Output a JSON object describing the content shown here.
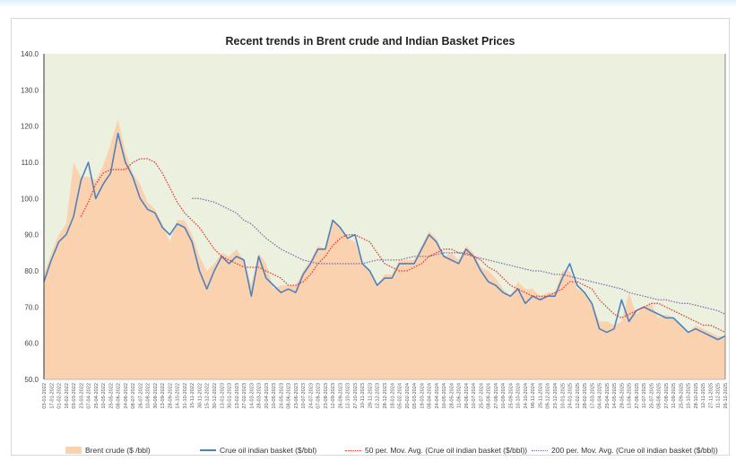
{
  "chart_data": {
    "type": "line",
    "title": "Recent trends in Brent crude and Indian Basket Prices",
    "xlabel": "",
    "ylabel": "",
    "ylim": [
      50,
      140
    ],
    "yticks": [
      "50.0",
      "60.0",
      "70.0",
      "80.0",
      "90.0",
      "100.0",
      "110.0",
      "120.0",
      "130.0",
      "140.0"
    ],
    "grid": false,
    "legend_position": "bottom",
    "plot_background": "#ebf1de",
    "x": [
      "03-01-2022",
      "17-01-2022",
      "01-02-2022",
      "16-02-2022",
      "03-03-2022",
      "23-03-2022",
      "07-04-2022",
      "25-04-2022",
      "10-05-2022",
      "25-05-2022",
      "08-06-2022",
      "24-06-2022",
      "08-07-2022",
      "26-07-2022",
      "10-08-2022",
      "30-08-2022",
      "13-09-2022",
      "28-09-2022",
      "14-10-2022",
      "31-10-2022",
      "15-11-2022",
      "30-11-2022",
      "15-12-2022",
      "30-12-2022",
      "13-01-2023",
      "30-01-2023",
      "13-02-2023",
      "27-02-2023",
      "14-03-2023",
      "28-03-2023",
      "20-04-2023",
      "10-05-2023",
      "24-05-2023",
      "08-06-2023",
      "23-06-2023",
      "10-07-2023",
      "24-07-2023",
      "07-08-2023",
      "23-08-2023",
      "12-09-2023",
      "26-09-2023",
      "12-10-2023",
      "27-10-2023",
      "10-11-2023",
      "28-11-2023",
      "12-12-2023",
      "28-12-2023",
      "18-01-2024",
      "05-02-2024",
      "20-02-2024",
      "05-03-2024",
      "19-03-2024",
      "08-04-2024",
      "24-04-2024",
      "10-05-2024",
      "28-05-2024",
      "11-06-2024",
      "26-06-2024",
      "10-07-2024",
      "25-07-2024",
      "08-08-2024",
      "27-08-2024",
      "10-09-2024",
      "25-09-2024",
      "10-10-2024",
      "24-10-2024",
      "08-11-2024",
      "25-11-2024",
      "09-12-2024",
      "23-12-2024",
      "10-01-2025",
      "24-01-2025",
      "12-02-2025",
      "28-02-2025",
      "17-03-2025",
      "04-04-2025",
      "25-04-2025",
      "14-05-2025",
      "29-05-2025",
      "13-06-2025",
      "27-06-2025",
      "11-07-2025",
      "25-07-2025",
      "08-08-2025",
      "27-08-2025",
      "11-09-2025",
      "25-09-2025",
      "10-10-2025",
      "28-10-2025",
      "12-11-2025",
      "27-11-2025",
      "11-12-2025",
      "26-12-2025"
    ],
    "series": [
      {
        "name": "Brent crude ($ /bbl)",
        "type": "area",
        "color": "#fbd2b0",
        "values": [
          79,
          85,
          90,
          93,
          110,
          106,
          106,
          105,
          109,
          115,
          122,
          113,
          107,
          104,
          99,
          97,
          93,
          88,
          94,
          94,
          90,
          84,
          80,
          82,
          85,
          84,
          86,
          83,
          76,
          85,
          82,
          75,
          76,
          76,
          76,
          80,
          83,
          87,
          86,
          94,
          92,
          89,
          88,
          82,
          80,
          76,
          79,
          79,
          83,
          83,
          83,
          87,
          91,
          89,
          84,
          85,
          83,
          87,
          85,
          81,
          80,
          78,
          75,
          73,
          77,
          75,
          75,
          73,
          74,
          74,
          80,
          80,
          75,
          74,
          71,
          66,
          66,
          65,
          66,
          74,
          68,
          70,
          71,
          67,
          68,
          67,
          65,
          63,
          65,
          64,
          63,
          62,
          62
        ]
      },
      {
        "name": "Crue oil indian basket ($/bbl)",
        "type": "line",
        "color": "#4f81bd",
        "values": [
          77,
          83,
          88,
          90,
          95,
          105,
          110,
          100,
          104,
          107,
          118,
          110,
          106,
          100,
          97,
          96,
          92,
          90,
          93,
          92,
          88,
          80,
          75,
          80,
          84,
          82,
          84,
          83,
          73,
          84,
          78,
          76,
          74,
          75,
          74,
          79,
          82,
          86,
          86,
          94,
          92,
          89,
          90,
          82,
          80,
          76,
          78,
          78,
          82,
          82,
          82,
          86,
          90,
          88,
          84,
          83,
          82,
          86,
          84,
          80,
          77,
          76,
          74,
          73,
          75,
          71,
          73,
          72,
          73,
          73,
          78,
          82,
          76,
          74,
          71,
          64,
          63,
          64,
          72,
          66,
          69,
          70,
          69,
          68,
          67,
          67,
          65,
          63,
          64,
          63,
          62,
          61,
          62
        ]
      },
      {
        "name": "50 per. Mov. Avg. (Crue oil indian basket ($/bbl))",
        "type": "line",
        "style": "dotted",
        "color": "#e03c31",
        "values": [
          null,
          null,
          null,
          null,
          null,
          95,
          99,
          104,
          107,
          108,
          108,
          108,
          110,
          111,
          111,
          110,
          107,
          103,
          99,
          96,
          94,
          92,
          89,
          86,
          84,
          83,
          82,
          81,
          81,
          81,
          80,
          79,
          78,
          76,
          76,
          77,
          79,
          82,
          84,
          87,
          89,
          90,
          90,
          89,
          88,
          85,
          82,
          81,
          80,
          80,
          81,
          82,
          84,
          85,
          86,
          86,
          85,
          85,
          84,
          83,
          81,
          80,
          78,
          76,
          75,
          74,
          73,
          73,
          73,
          74,
          75,
          77,
          77,
          76,
          75,
          72,
          70,
          68,
          67,
          68,
          69,
          70,
          71,
          71,
          70,
          69,
          68,
          67,
          66,
          65,
          65,
          64,
          63
        ]
      },
      {
        "name": "200 per. Mov. Avg. (Crue oil indian basket ($/bbl))",
        "type": "line",
        "style": "dotted",
        "color": "#7f6fb5",
        "values": [
          null,
          null,
          null,
          null,
          null,
          null,
          null,
          null,
          null,
          null,
          null,
          null,
          null,
          null,
          null,
          null,
          null,
          null,
          null,
          null,
          100,
          100,
          99.5,
          99,
          98,
          97,
          96,
          94,
          93,
          91,
          89,
          87.5,
          86,
          85,
          84,
          83,
          82.5,
          82,
          82,
          82,
          82,
          82,
          82,
          82,
          82.5,
          83,
          83,
          83,
          83,
          83.5,
          84,
          84,
          84,
          84.5,
          85,
          85,
          85,
          84.5,
          84,
          83.5,
          83,
          82.5,
          82,
          81.5,
          81,
          80.5,
          80,
          80,
          79.5,
          79,
          79,
          78.5,
          78,
          77.5,
          77,
          76.5,
          76,
          75.5,
          75,
          74,
          73.5,
          73,
          72.5,
          72,
          72,
          71.5,
          71,
          71,
          70.5,
          70,
          69.5,
          69,
          68
        ]
      }
    ]
  }
}
